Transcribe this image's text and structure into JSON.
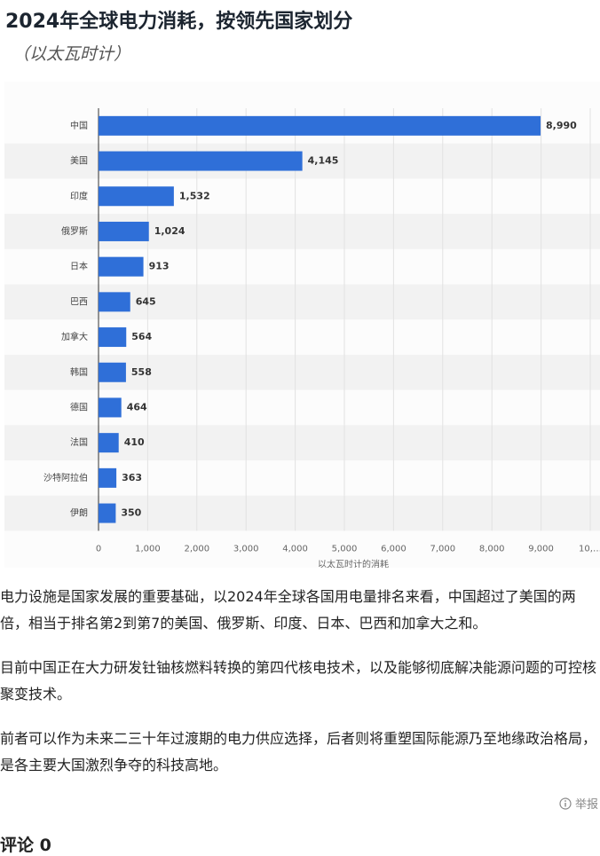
{
  "chart_data": {
    "type": "bar",
    "orientation": "horizontal",
    "title": "2024年全球电力消耗，按领先国家划分",
    "subtitle": "（以太瓦时计）",
    "xlabel": "以太瓦时计的消耗",
    "categories": [
      "中国",
      "美国",
      "印度",
      "俄罗斯",
      "日本",
      "巴西",
      "加拿大",
      "韩国",
      "德国",
      "法国",
      "沙特阿拉伯",
      "伊朗"
    ],
    "values": [
      8990,
      4145,
      1532,
      1024,
      913,
      645,
      564,
      558,
      464,
      410,
      363,
      350
    ],
    "value_labels": [
      "8,990",
      "4,145",
      "1,532",
      "1,024",
      "913",
      "645",
      "564",
      "558",
      "464",
      "410",
      "363",
      "350"
    ],
    "color": "#2f6fd8",
    "xlim": [
      0,
      10000
    ],
    "xticks": [
      0,
      {
        "value": 1000,
        "label": "1,000"
      },
      {
        "value": 2000,
        "label": "2,000"
      },
      {
        "value": 3000,
        "label": "3,000"
      },
      {
        "value": 4000,
        "label": "4,000"
      },
      {
        "value": 5000,
        "label": "5,000"
      },
      {
        "value": 6000,
        "label": "6,000"
      },
      {
        "value": 7000,
        "label": "7,000"
      },
      {
        "value": 8000,
        "label": "8,000"
      },
      {
        "value": 9000,
        "label": "9,000"
      },
      {
        "value": 10000,
        "label": "10,…"
      }
    ],
    "grid": true
  },
  "article": {
    "paragraphs": [
      "电力设施是国家发展的重要基础，以2024年全球各国用电量排名来看，中国超过了美国的两倍，相当于排名第2到第7的美国、俄罗斯、印度、日本、巴西和加拿大之和。",
      "目前中国正在大力研发钍铀核燃料转换的第四代核电技术，以及能够彻底解决能源问题的可控核聚变技术。",
      "前者可以作为未来二三十年过渡期的电力供应选择，后者则将重塑国际能源乃至地缘政治格局，是各主要大国激烈争夺的科技高地。"
    ],
    "report": "举报",
    "comments": "评论 0"
  }
}
